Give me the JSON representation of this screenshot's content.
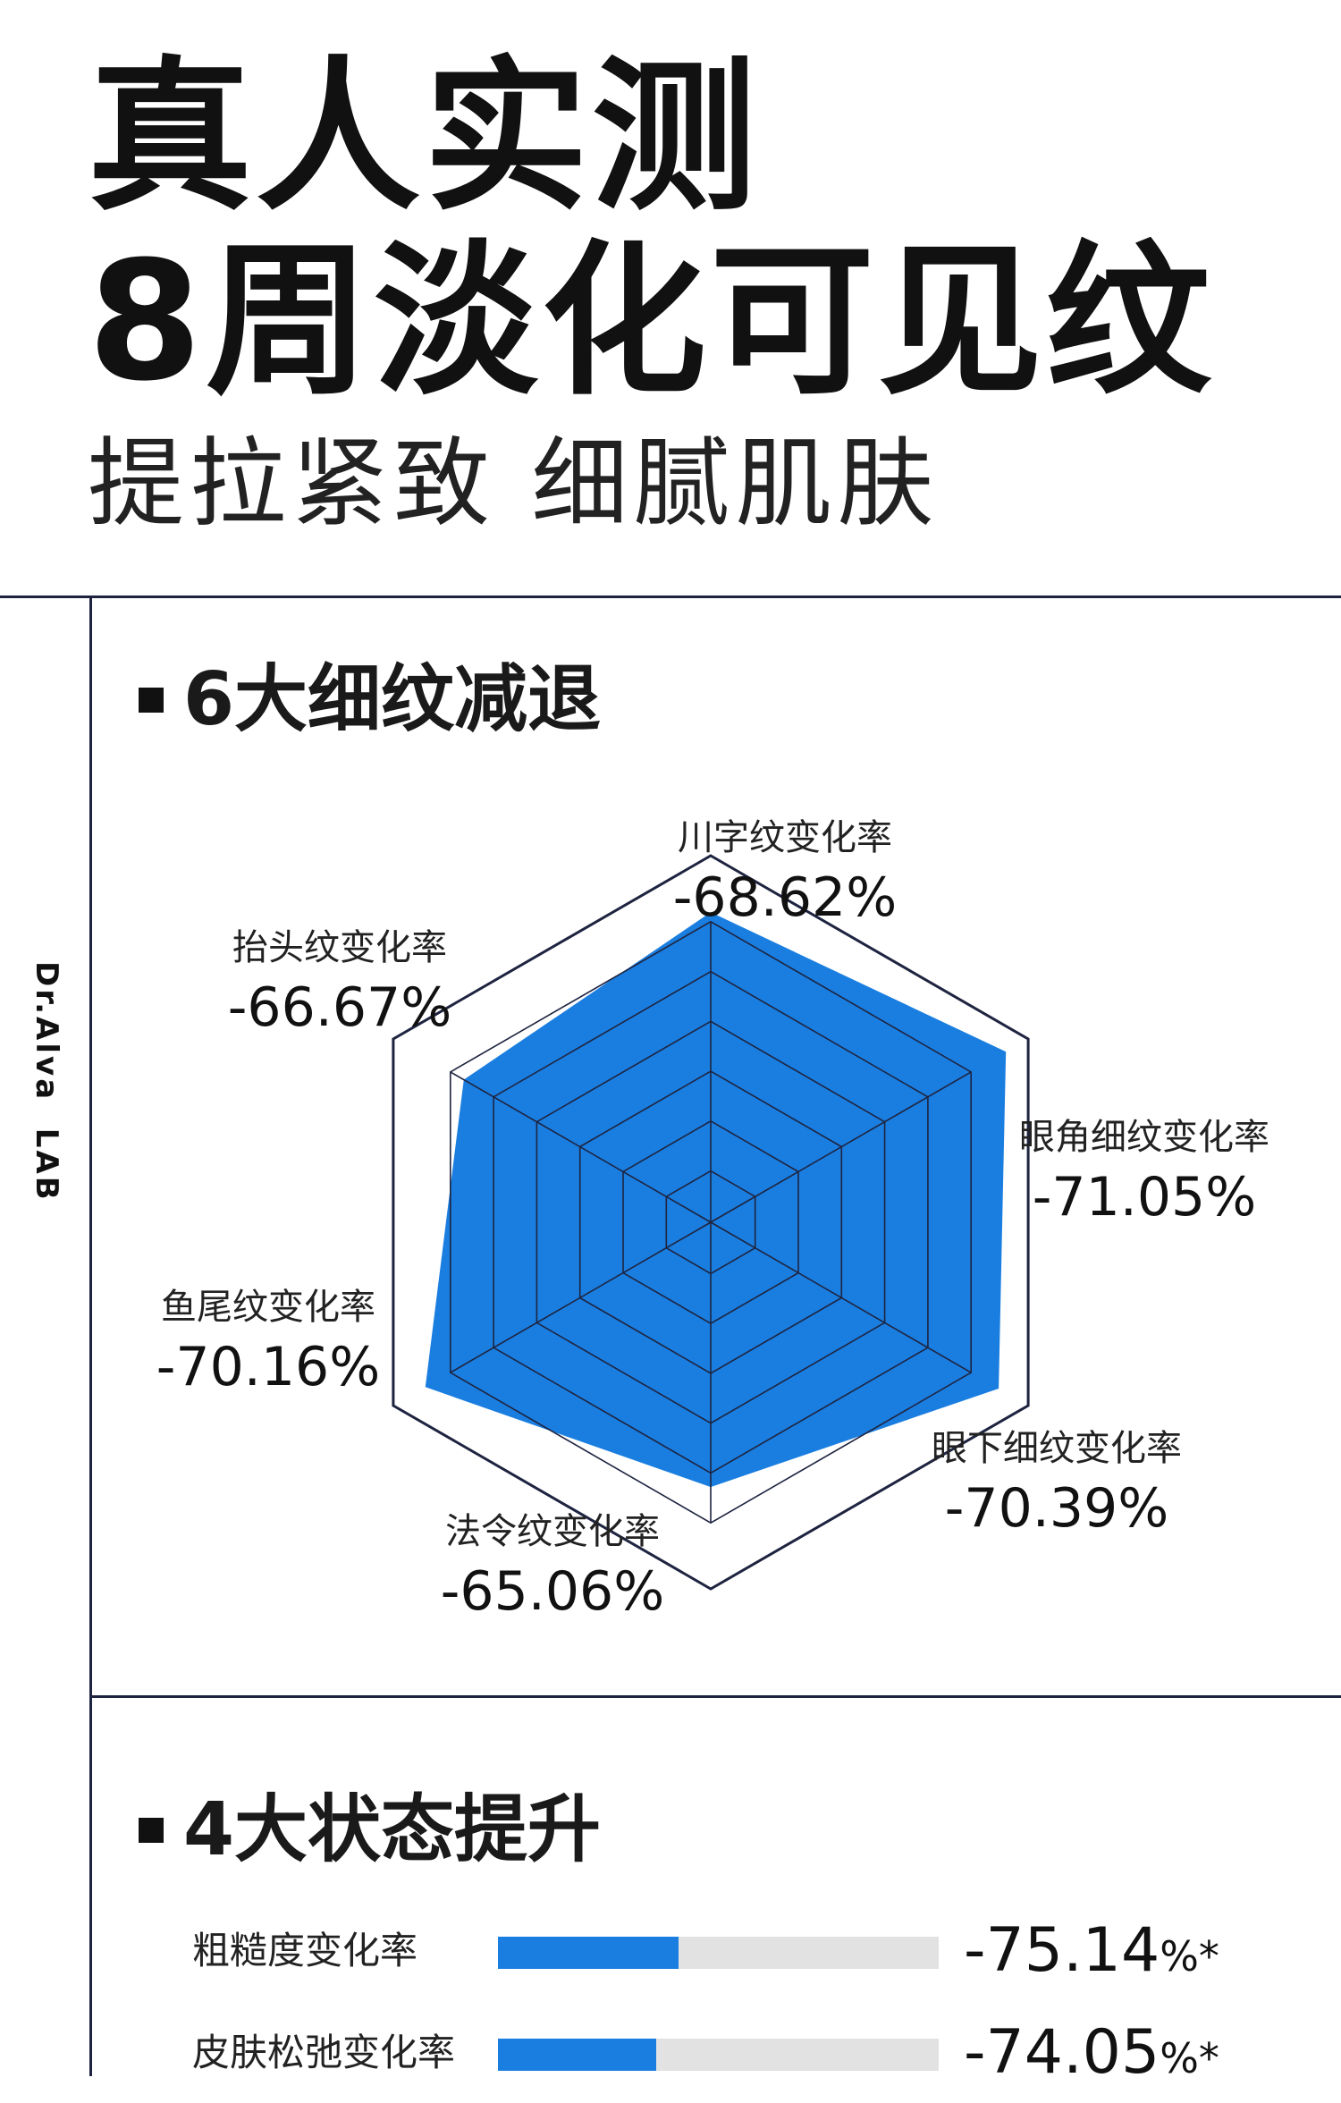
{
  "header": {
    "title_line1": "真人实测",
    "title_line2": "8周淡化可见纹",
    "subtitle": "提拉紧致 细腻肌肤"
  },
  "brand": "Dr.Alva  LAB",
  "sections": {
    "radar_title": "6大细纹减退",
    "bars_title": "4大状态提升"
  },
  "colors": {
    "accent": "#1a7ee0",
    "line": "#1e2440",
    "track": "#e2e2e2"
  },
  "chart_data": [
    {
      "type": "radar",
      "title": "6大细纹减退",
      "axes": [
        "川字纹变化率",
        "眼角细纹变化率",
        "眼下细纹变化率",
        "法令纹变化率",
        "鱼尾纹变化率",
        "抬头纹变化率"
      ],
      "values": [
        -68.62,
        -71.05,
        -70.39,
        -65.06,
        -70.16,
        -66.67
      ],
      "value_labels": [
        "-68.62%",
        "-71.05%",
        "-70.39%",
        "-65.06%",
        "-70.16%",
        "-66.67%"
      ],
      "rings": 6,
      "series_color": "#1a7ee0"
    },
    {
      "type": "bar",
      "title": "4大状态提升",
      "categories": [
        "粗糙度变化率",
        "皮肤松弛变化率"
      ],
      "values": [
        -75.14,
        -74.05
      ],
      "value_texts": [
        "-75.14",
        "-74.05"
      ],
      "unit": "%*",
      "fill_fraction": [
        0.41,
        0.36
      ]
    }
  ]
}
